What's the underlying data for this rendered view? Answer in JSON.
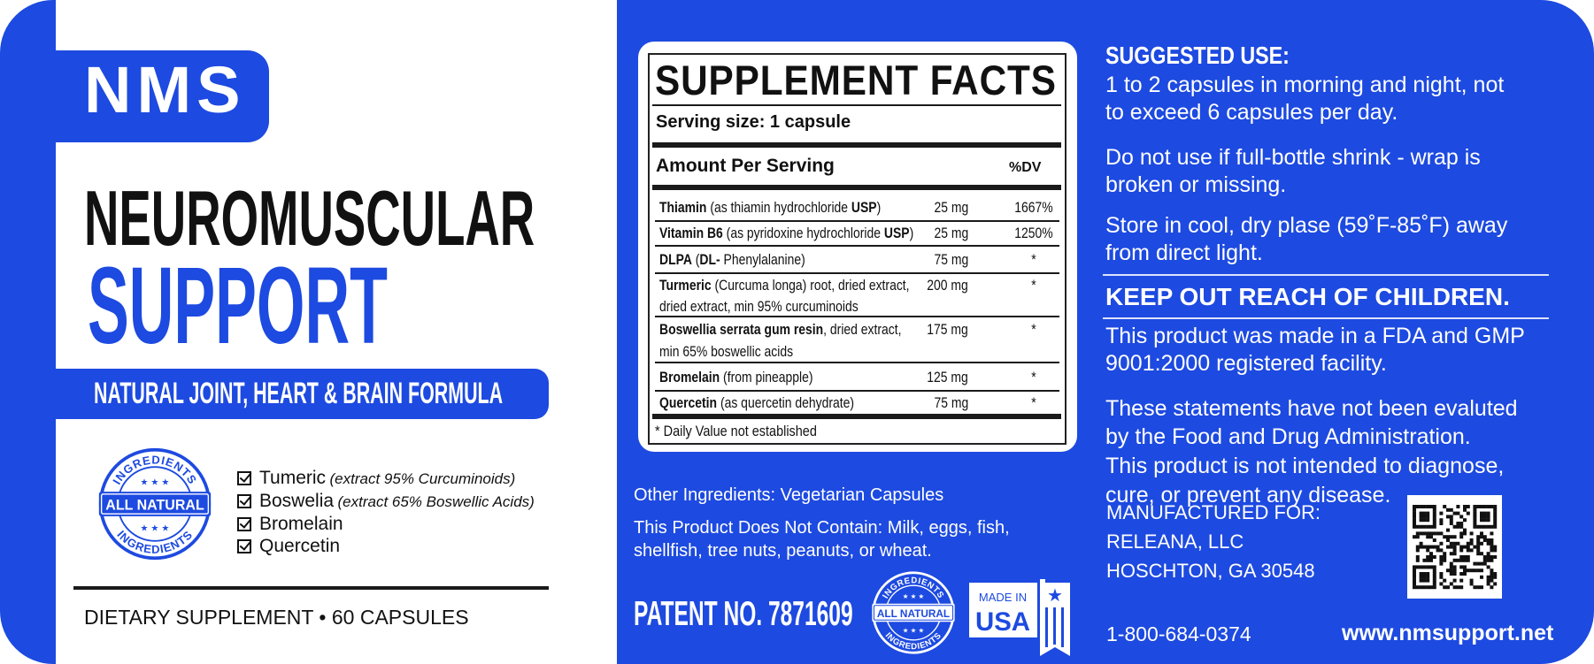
{
  "colors": {
    "brand_blue": "#1d4ae0",
    "text_dark": "#111111",
    "white": "#ffffff"
  },
  "brand": {
    "logo": "NMS",
    "title_line1": "NEUROMUSCULAR",
    "title_line2": "SUPPORT",
    "tagline": "NATURAL JOINT, HEART & BRAIN FORMULA"
  },
  "badge": {
    "top_arc": "INGREDIENTS",
    "center": "ALL NATURAL",
    "bottom_arc": "INGREDIENTS"
  },
  "key_ingredients": [
    {
      "name": "Tumeric",
      "note": "(extract 95%  Curcuminoids)",
      "checked": true
    },
    {
      "name": "Boswelia",
      "note": "(extract 65% Boswellic Acids)",
      "checked": true
    },
    {
      "name": "Bromelain",
      "note": "",
      "checked": true
    },
    {
      "name": "Quercetin",
      "note": "",
      "checked": true
    }
  ],
  "product_line": "DIETARY SUPPLEMENT • 60 CAPSULES",
  "facts": {
    "title": "SUPPLEMENT FACTS",
    "serving_size": "Serving size: 1 capsule",
    "amount_header": "Amount Per Serving",
    "dv_header": "%DV",
    "rows": [
      {
        "segments": [
          {
            "text": "Thiamin",
            "bold": true
          },
          {
            "text": " (as thiamin hydrochloride "
          },
          {
            "text": "USP",
            "bold": true
          },
          {
            "text": ")"
          }
        ],
        "line2": "",
        "amount": "25 mg",
        "dv": "1667%"
      },
      {
        "segments": [
          {
            "text": "Vitamin B6",
            "bold": true
          },
          {
            "text": " (as pyridoxine hydrochloride "
          },
          {
            "text": "USP",
            "bold": true
          },
          {
            "text": ")"
          }
        ],
        "line2": "",
        "amount": "25 mg",
        "dv": "1250%"
      },
      {
        "segments": [
          {
            "text": "DLPA",
            "bold": true
          },
          {
            "text": " ("
          },
          {
            "text": "DL-",
            "bold": true
          },
          {
            "text": " Phenylalanine)"
          }
        ],
        "line2": "",
        "amount": "75 mg",
        "dv": "*"
      },
      {
        "segments": [
          {
            "text": "Turmeric",
            "bold": true
          },
          {
            "text": " (Curcuma longa) root, dried extract,"
          }
        ],
        "line2": "dried extract, min 95% curcuminoids",
        "amount": "200 mg",
        "dv": "*"
      },
      {
        "segments": [
          {
            "text": "Boswellia serrata gum resin",
            "bold": true
          },
          {
            "text": ", dried extract,"
          }
        ],
        "line2": "min 65% boswellic acids",
        "amount": "175 mg",
        "dv": "*"
      },
      {
        "segments": [
          {
            "text": "Bromelain",
            "bold": true
          },
          {
            "text": " (from pineapple)"
          }
        ],
        "line2": "",
        "amount": "125 mg",
        "dv": "*"
      },
      {
        "segments": [
          {
            "text": "Quercetin",
            "bold": true
          },
          {
            "text": " (as quercetin dehydrate)"
          }
        ],
        "line2": "",
        "amount": "75 mg",
        "dv": "*"
      }
    ],
    "footnote": "* Daily Value not established"
  },
  "other_ingredients": "Other Ingredients: Vegetarian Capsules",
  "allergens": [
    "This Product Does Not Contain: Milk, eggs, fish,",
    "shellfish, tree nuts, peanuts, or wheat."
  ],
  "patent": "PATENT NO. 7871609",
  "made_in_usa": {
    "top": "MADE IN",
    "main": "USA"
  },
  "suggested_use": {
    "heading": "SUGGESTED USE:",
    "lines": [
      "1 to 2 capsules in morning and night, not",
      "to exceed 6 capsules per day."
    ]
  },
  "shrink_wrap": [
    "Do not use if full-bottle shrink - wrap is",
    "broken or missing."
  ],
  "storage": [
    "Store in cool, dry plase (59˚F-85˚F) away",
    "from direct light."
  ],
  "warning": "KEEP OUT REACH OF CHILDREN.",
  "facility": [
    "This product was made in a FDA and GMP",
    "9001:2000 registered facility."
  ],
  "disclaimer": [
    "These statements have not been evaluted",
    "by the Food and Drug Administration.",
    "This product is not intended to diagnose,",
    "cure, or prevent any disease."
  ],
  "manufacturer": [
    "MANUFACTURED FOR:",
    "RELEANA, LLC",
    "HOSCHTON, GA 30548"
  ],
  "phone": "1-800-684-0374",
  "website": "www.nmsupport.net"
}
